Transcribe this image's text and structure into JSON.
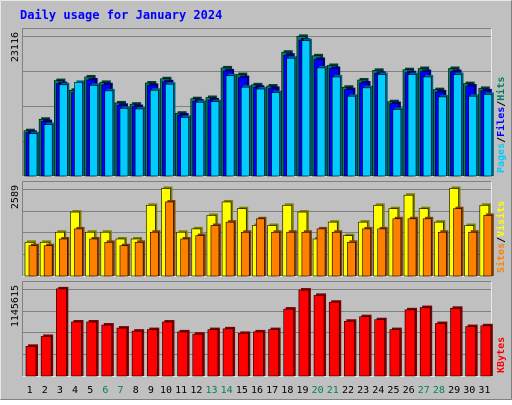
{
  "title": "Daily usage for January 2024",
  "colors": {
    "background": "#c0c0c0",
    "frame_light": "#e8e8e8",
    "frame_dark": "#808080",
    "title": "#0000ff",
    "gridline": "#808080",
    "pages_front": "#00ccff",
    "pages_back": "#006080",
    "files_back": "#0000ff",
    "hits_back": "#008060",
    "visits_front": "#ffff00",
    "sites_front": "#ff8000",
    "kbytes_front": "#ff0000",
    "weekend_day": "#008060",
    "weekday": "#000000"
  },
  "chart_data": [
    {
      "type": "bar",
      "name": "hits-files-pages",
      "ymax_label": "23116",
      "ymax": 23116,
      "legend": [
        {
          "label": "Pages",
          "color": "#00ccff"
        },
        {
          "label": "/",
          "color": "#000000"
        },
        {
          "label": "Files",
          "color": "#0000ff"
        },
        {
          "label": "/",
          "color": "#000000"
        },
        {
          "label": "Hits",
          "color": "#008060"
        }
      ],
      "series": [
        {
          "name": "Hits",
          "values": [
            7500,
            9400,
            15800,
            14200,
            16400,
            15500,
            12100,
            11900,
            15400,
            16100,
            10400,
            12800,
            13000,
            17900,
            16800,
            15100,
            14900,
            20500,
            23116,
            19900,
            18300,
            14700,
            15900,
            17500,
            12300,
            17600,
            17800,
            14300,
            17800,
            15300,
            14500
          ]
        },
        {
          "name": "Files",
          "values": [
            7200,
            9000,
            15300,
            13800,
            15900,
            15100,
            11700,
            11500,
            15000,
            15600,
            10100,
            12400,
            12600,
            17400,
            16300,
            14700,
            14500,
            20000,
            22500,
            19300,
            17800,
            14300,
            15400,
            17000,
            12000,
            17100,
            17300,
            13900,
            17300,
            14900,
            14100
          ]
        },
        {
          "name": "Pages",
          "values": [
            7000,
            8500,
            15100,
            15500,
            15000,
            14100,
            11200,
            11100,
            14200,
            15200,
            9700,
            12200,
            12300,
            16600,
            14700,
            14400,
            13800,
            19500,
            22400,
            17900,
            16400,
            13200,
            14600,
            16800,
            11000,
            16800,
            16400,
            13100,
            16800,
            13200,
            13500
          ]
        }
      ]
    },
    {
      "type": "bar",
      "name": "sites-visits",
      "ymax_label": "2589",
      "ymax": 2589,
      "legend": [
        {
          "label": "Sites",
          "color": "#ff8000"
        },
        {
          "label": "/",
          "color": "#000000"
        },
        {
          "label": "Visits",
          "color": "#ffff00"
        }
      ],
      "series": [
        {
          "name": "Visits",
          "values": [
            1000,
            1000,
            1300,
            1900,
            1300,
            1300,
            1100,
            1100,
            2100,
            2600,
            1300,
            1400,
            1800,
            2200,
            2000,
            1500,
            1500,
            2100,
            1900,
            1100,
            1600,
            1200,
            1600,
            2100,
            2000,
            2400,
            2000,
            1600,
            2600,
            1500,
            2100
          ]
        },
        {
          "name": "Sites",
          "values": [
            900,
            900,
            1100,
            1400,
            1100,
            1000,
            900,
            1000,
            1300,
            2200,
            1100,
            1200,
            1500,
            1600,
            1300,
            1700,
            1300,
            1300,
            1300,
            1400,
            1300,
            1000,
            1400,
            1400,
            1700,
            1700,
            1700,
            1300,
            2000,
            1300,
            1800
          ]
        }
      ]
    },
    {
      "type": "bar",
      "name": "kbytes",
      "ymax_label": "1145615",
      "ymax": 1145615,
      "legend": [
        {
          "label": "KBytes",
          "color": "#ff0000"
        }
      ],
      "series": [
        {
          "name": "KBytes",
          "values": [
            390000,
            520000,
            1145615,
            710000,
            710000,
            670000,
            630000,
            590000,
            610000,
            710000,
            580000,
            550000,
            610000,
            620000,
            560000,
            580000,
            610000,
            880000,
            1130000,
            1060000,
            970000,
            720000,
            780000,
            740000,
            610000,
            870000,
            900000,
            690000,
            890000,
            650000,
            660000
          ]
        }
      ]
    }
  ],
  "days": [
    {
      "label": "1",
      "weekend": false
    },
    {
      "label": "2",
      "weekend": false
    },
    {
      "label": "3",
      "weekend": false
    },
    {
      "label": "4",
      "weekend": false
    },
    {
      "label": "5",
      "weekend": false
    },
    {
      "label": "6",
      "weekend": true
    },
    {
      "label": "7",
      "weekend": true
    },
    {
      "label": "8",
      "weekend": false
    },
    {
      "label": "9",
      "weekend": false
    },
    {
      "label": "10",
      "weekend": false
    },
    {
      "label": "11",
      "weekend": false
    },
    {
      "label": "12",
      "weekend": false
    },
    {
      "label": "13",
      "weekend": true
    },
    {
      "label": "14",
      "weekend": true
    },
    {
      "label": "15",
      "weekend": false
    },
    {
      "label": "16",
      "weekend": false
    },
    {
      "label": "17",
      "weekend": false
    },
    {
      "label": "18",
      "weekend": false
    },
    {
      "label": "19",
      "weekend": false
    },
    {
      "label": "20",
      "weekend": true
    },
    {
      "label": "21",
      "weekend": true
    },
    {
      "label": "22",
      "weekend": false
    },
    {
      "label": "23",
      "weekend": false
    },
    {
      "label": "24",
      "weekend": false
    },
    {
      "label": "25",
      "weekend": false
    },
    {
      "label": "26",
      "weekend": false
    },
    {
      "label": "27",
      "weekend": true
    },
    {
      "label": "28",
      "weekend": true
    },
    {
      "label": "29",
      "weekend": false
    },
    {
      "label": "30",
      "weekend": false
    },
    {
      "label": "31",
      "weekend": false
    }
  ]
}
